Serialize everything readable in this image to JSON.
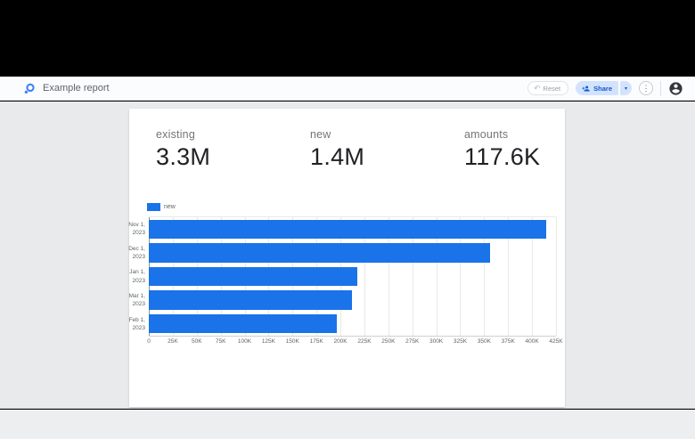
{
  "header": {
    "title": "Example report",
    "reset_label": "Reset",
    "share_label": "Share"
  },
  "scorecards": [
    {
      "label": "existing",
      "value": "3.3M"
    },
    {
      "label": "new",
      "value": "1.4M"
    },
    {
      "label": "amounts",
      "value": "117.6K"
    }
  ],
  "chart_data": {
    "type": "bar",
    "orientation": "horizontal",
    "title": "",
    "legend_position": "top-left",
    "categories": [
      "Nov 1, 2023",
      "Dec 1, 2023",
      "Jan 1, 2023",
      "Mar 1, 2023",
      "Feb 1, 2023"
    ],
    "series": [
      {
        "name": "new",
        "values": [
          415000,
          356000,
          218000,
          212000,
          196000
        ]
      }
    ],
    "xlim": [
      0,
      425000
    ],
    "x_ticks": [
      "0",
      "25K",
      "50K",
      "75K",
      "100K",
      "125K",
      "150K",
      "175K",
      "200K",
      "225K",
      "250K",
      "275K",
      "300K",
      "325K",
      "350K",
      "375K",
      "400K",
      "425K"
    ],
    "grid": true,
    "bar_color": "#1a73e8"
  },
  "colors": {
    "accent_blue": "#1a73e8",
    "share_bg": "#d3e3fd",
    "share_text": "#0b57d0",
    "workspace_bg": "#e9eaec",
    "canvas_bg": "#ffffff",
    "header_bg": "#fbfcfe",
    "muted_text": "#5f6368"
  }
}
